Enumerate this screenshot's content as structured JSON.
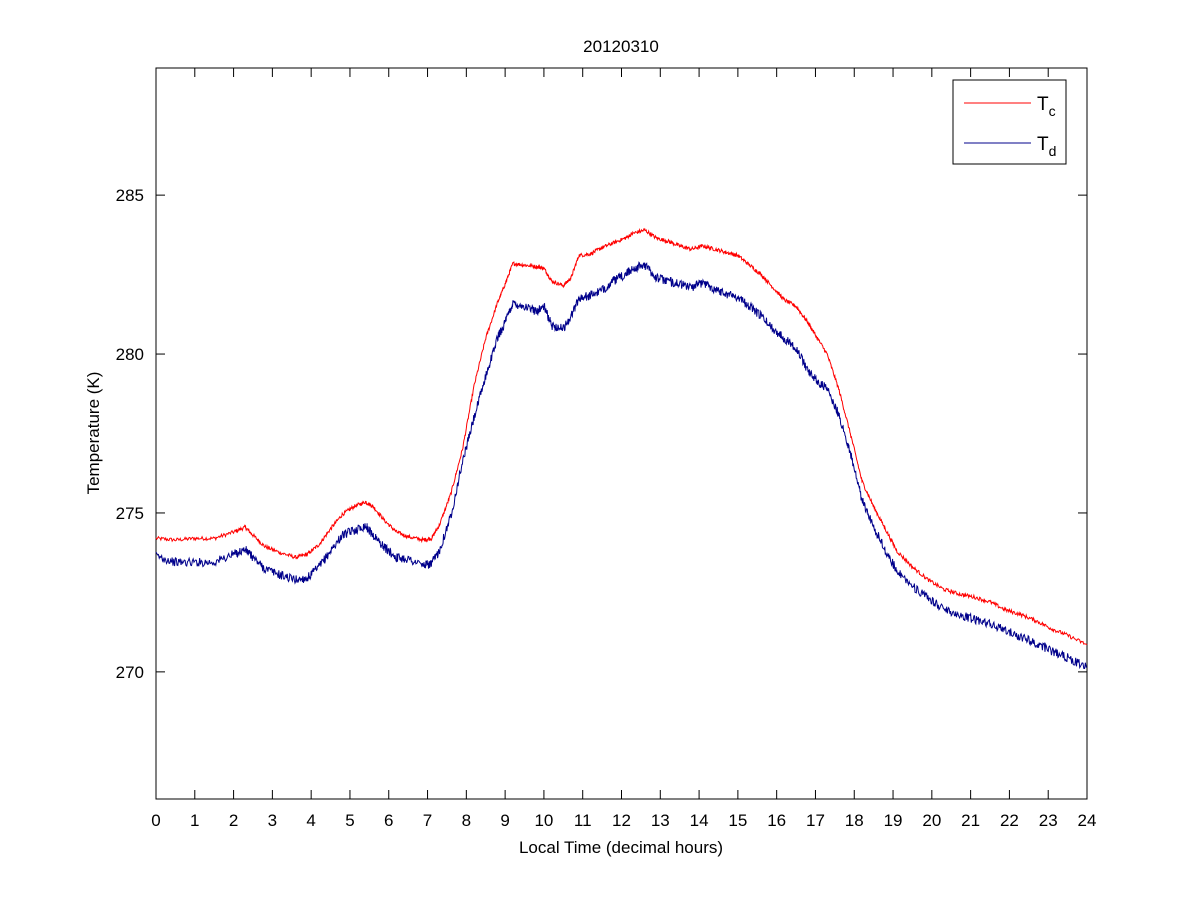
{
  "chart_data": {
    "type": "line",
    "title": "20120310",
    "xlabel": "Local Time (decimal hours)",
    "ylabel": "Temperature (K)",
    "xlim": [
      0,
      24
    ],
    "ylim": [
      266,
      289
    ],
    "xticks": [
      0,
      1,
      2,
      3,
      4,
      5,
      6,
      7,
      8,
      9,
      10,
      11,
      12,
      13,
      14,
      15,
      16,
      17,
      18,
      19,
      20,
      21,
      22,
      23,
      24
    ],
    "yticks": [
      270,
      275,
      280,
      285
    ],
    "grid": false,
    "legend_position": "top-right",
    "series": [
      {
        "label_base": "T",
        "label_sub": "c",
        "color": "#ff0000",
        "points": [
          [
            0,
            274.2
          ],
          [
            0.5,
            274.15
          ],
          [
            1,
            274.2
          ],
          [
            1.5,
            274.2
          ],
          [
            2,
            274.4
          ],
          [
            2.3,
            274.55
          ],
          [
            2.5,
            274.3
          ],
          [
            2.8,
            273.95
          ],
          [
            3.2,
            273.75
          ],
          [
            3.6,
            273.6
          ],
          [
            3.9,
            273.7
          ],
          [
            4.2,
            274.0
          ],
          [
            4.5,
            274.5
          ],
          [
            4.8,
            274.95
          ],
          [
            5.1,
            275.2
          ],
          [
            5.4,
            275.35
          ],
          [
            5.6,
            275.2
          ],
          [
            5.9,
            274.75
          ],
          [
            6.2,
            274.4
          ],
          [
            6.5,
            274.25
          ],
          [
            6.9,
            274.15
          ],
          [
            7.1,
            274.2
          ],
          [
            7.3,
            274.6
          ],
          [
            7.6,
            275.6
          ],
          [
            7.9,
            277.0
          ],
          [
            8.2,
            279.0
          ],
          [
            8.5,
            280.5
          ],
          [
            8.8,
            281.6
          ],
          [
            9.0,
            282.2
          ],
          [
            9.2,
            282.85
          ],
          [
            9.5,
            282.8
          ],
          [
            9.8,
            282.75
          ],
          [
            10.0,
            282.7
          ],
          [
            10.2,
            282.3
          ],
          [
            10.5,
            282.15
          ],
          [
            10.7,
            282.4
          ],
          [
            10.9,
            283.1
          ],
          [
            11.2,
            283.15
          ],
          [
            11.5,
            283.35
          ],
          [
            11.8,
            283.5
          ],
          [
            12.1,
            283.65
          ],
          [
            12.3,
            283.8
          ],
          [
            12.6,
            283.9
          ],
          [
            12.9,
            283.65
          ],
          [
            13.2,
            283.55
          ],
          [
            13.5,
            283.4
          ],
          [
            13.8,
            283.3
          ],
          [
            14.1,
            283.4
          ],
          [
            14.4,
            283.3
          ],
          [
            14.7,
            283.2
          ],
          [
            15.0,
            283.1
          ],
          [
            15.3,
            282.8
          ],
          [
            15.6,
            282.5
          ],
          [
            15.9,
            282.1
          ],
          [
            16.2,
            281.7
          ],
          [
            16.5,
            281.5
          ],
          [
            16.8,
            281.0
          ],
          [
            17.0,
            280.6
          ],
          [
            17.3,
            280.0
          ],
          [
            17.6,
            278.9
          ],
          [
            17.9,
            277.5
          ],
          [
            18.2,
            276.0
          ],
          [
            18.5,
            275.2
          ],
          [
            18.8,
            274.5
          ],
          [
            19.1,
            273.8
          ],
          [
            19.5,
            273.3
          ],
          [
            19.9,
            272.9
          ],
          [
            20.3,
            272.6
          ],
          [
            20.7,
            272.45
          ],
          [
            21.1,
            272.35
          ],
          [
            21.5,
            272.2
          ],
          [
            21.9,
            271.95
          ],
          [
            22.3,
            271.8
          ],
          [
            22.7,
            271.6
          ],
          [
            23.1,
            271.35
          ],
          [
            23.5,
            271.15
          ],
          [
            24.0,
            270.85
          ]
        ]
      },
      {
        "label_base": "T",
        "label_sub": "d",
        "color": "#00008b",
        "points": [
          [
            0,
            273.65
          ],
          [
            0.5,
            273.45
          ],
          [
            1,
            273.45
          ],
          [
            1.5,
            273.45
          ],
          [
            2,
            273.7
          ],
          [
            2.3,
            273.85
          ],
          [
            2.5,
            273.6
          ],
          [
            2.8,
            273.25
          ],
          [
            3.2,
            273.05
          ],
          [
            3.6,
            272.9
          ],
          [
            3.9,
            272.95
          ],
          [
            4.2,
            273.3
          ],
          [
            4.5,
            273.8
          ],
          [
            4.8,
            274.3
          ],
          [
            5.1,
            274.45
          ],
          [
            5.4,
            274.6
          ],
          [
            5.6,
            274.3
          ],
          [
            5.9,
            273.9
          ],
          [
            6.2,
            273.6
          ],
          [
            6.5,
            273.55
          ],
          [
            6.9,
            273.35
          ],
          [
            7.1,
            273.4
          ],
          [
            7.3,
            273.8
          ],
          [
            7.6,
            274.9
          ],
          [
            7.9,
            276.6
          ],
          [
            8.2,
            278.0
          ],
          [
            8.5,
            279.3
          ],
          [
            8.8,
            280.5
          ],
          [
            9.0,
            281.0
          ],
          [
            9.2,
            281.6
          ],
          [
            9.5,
            281.5
          ],
          [
            9.8,
            281.35
          ],
          [
            10.0,
            281.5
          ],
          [
            10.2,
            280.9
          ],
          [
            10.5,
            280.8
          ],
          [
            10.7,
            281.2
          ],
          [
            10.9,
            281.75
          ],
          [
            11.2,
            281.85
          ],
          [
            11.5,
            282.0
          ],
          [
            11.8,
            282.3
          ],
          [
            12.1,
            282.5
          ],
          [
            12.3,
            282.7
          ],
          [
            12.6,
            282.8
          ],
          [
            12.9,
            282.4
          ],
          [
            13.2,
            282.3
          ],
          [
            13.5,
            282.2
          ],
          [
            13.8,
            282.1
          ],
          [
            14.1,
            282.25
          ],
          [
            14.4,
            282.05
          ],
          [
            14.7,
            281.9
          ],
          [
            15.0,
            281.8
          ],
          [
            15.3,
            281.5
          ],
          [
            15.6,
            281.2
          ],
          [
            15.9,
            280.8
          ],
          [
            16.2,
            280.5
          ],
          [
            16.5,
            280.2
          ],
          [
            16.8,
            279.5
          ],
          [
            17.0,
            279.2
          ],
          [
            17.3,
            278.9
          ],
          [
            17.6,
            278.1
          ],
          [
            17.9,
            276.9
          ],
          [
            18.2,
            275.4
          ],
          [
            18.5,
            274.6
          ],
          [
            18.8,
            273.8
          ],
          [
            19.1,
            273.2
          ],
          [
            19.5,
            272.7
          ],
          [
            19.9,
            272.3
          ],
          [
            20.3,
            272.0
          ],
          [
            20.7,
            271.8
          ],
          [
            21.1,
            271.65
          ],
          [
            21.5,
            271.5
          ],
          [
            21.9,
            271.3
          ],
          [
            22.3,
            271.1
          ],
          [
            22.7,
            270.9
          ],
          [
            23.1,
            270.65
          ],
          [
            23.5,
            270.45
          ],
          [
            24.0,
            270.15
          ]
        ]
      }
    ]
  }
}
